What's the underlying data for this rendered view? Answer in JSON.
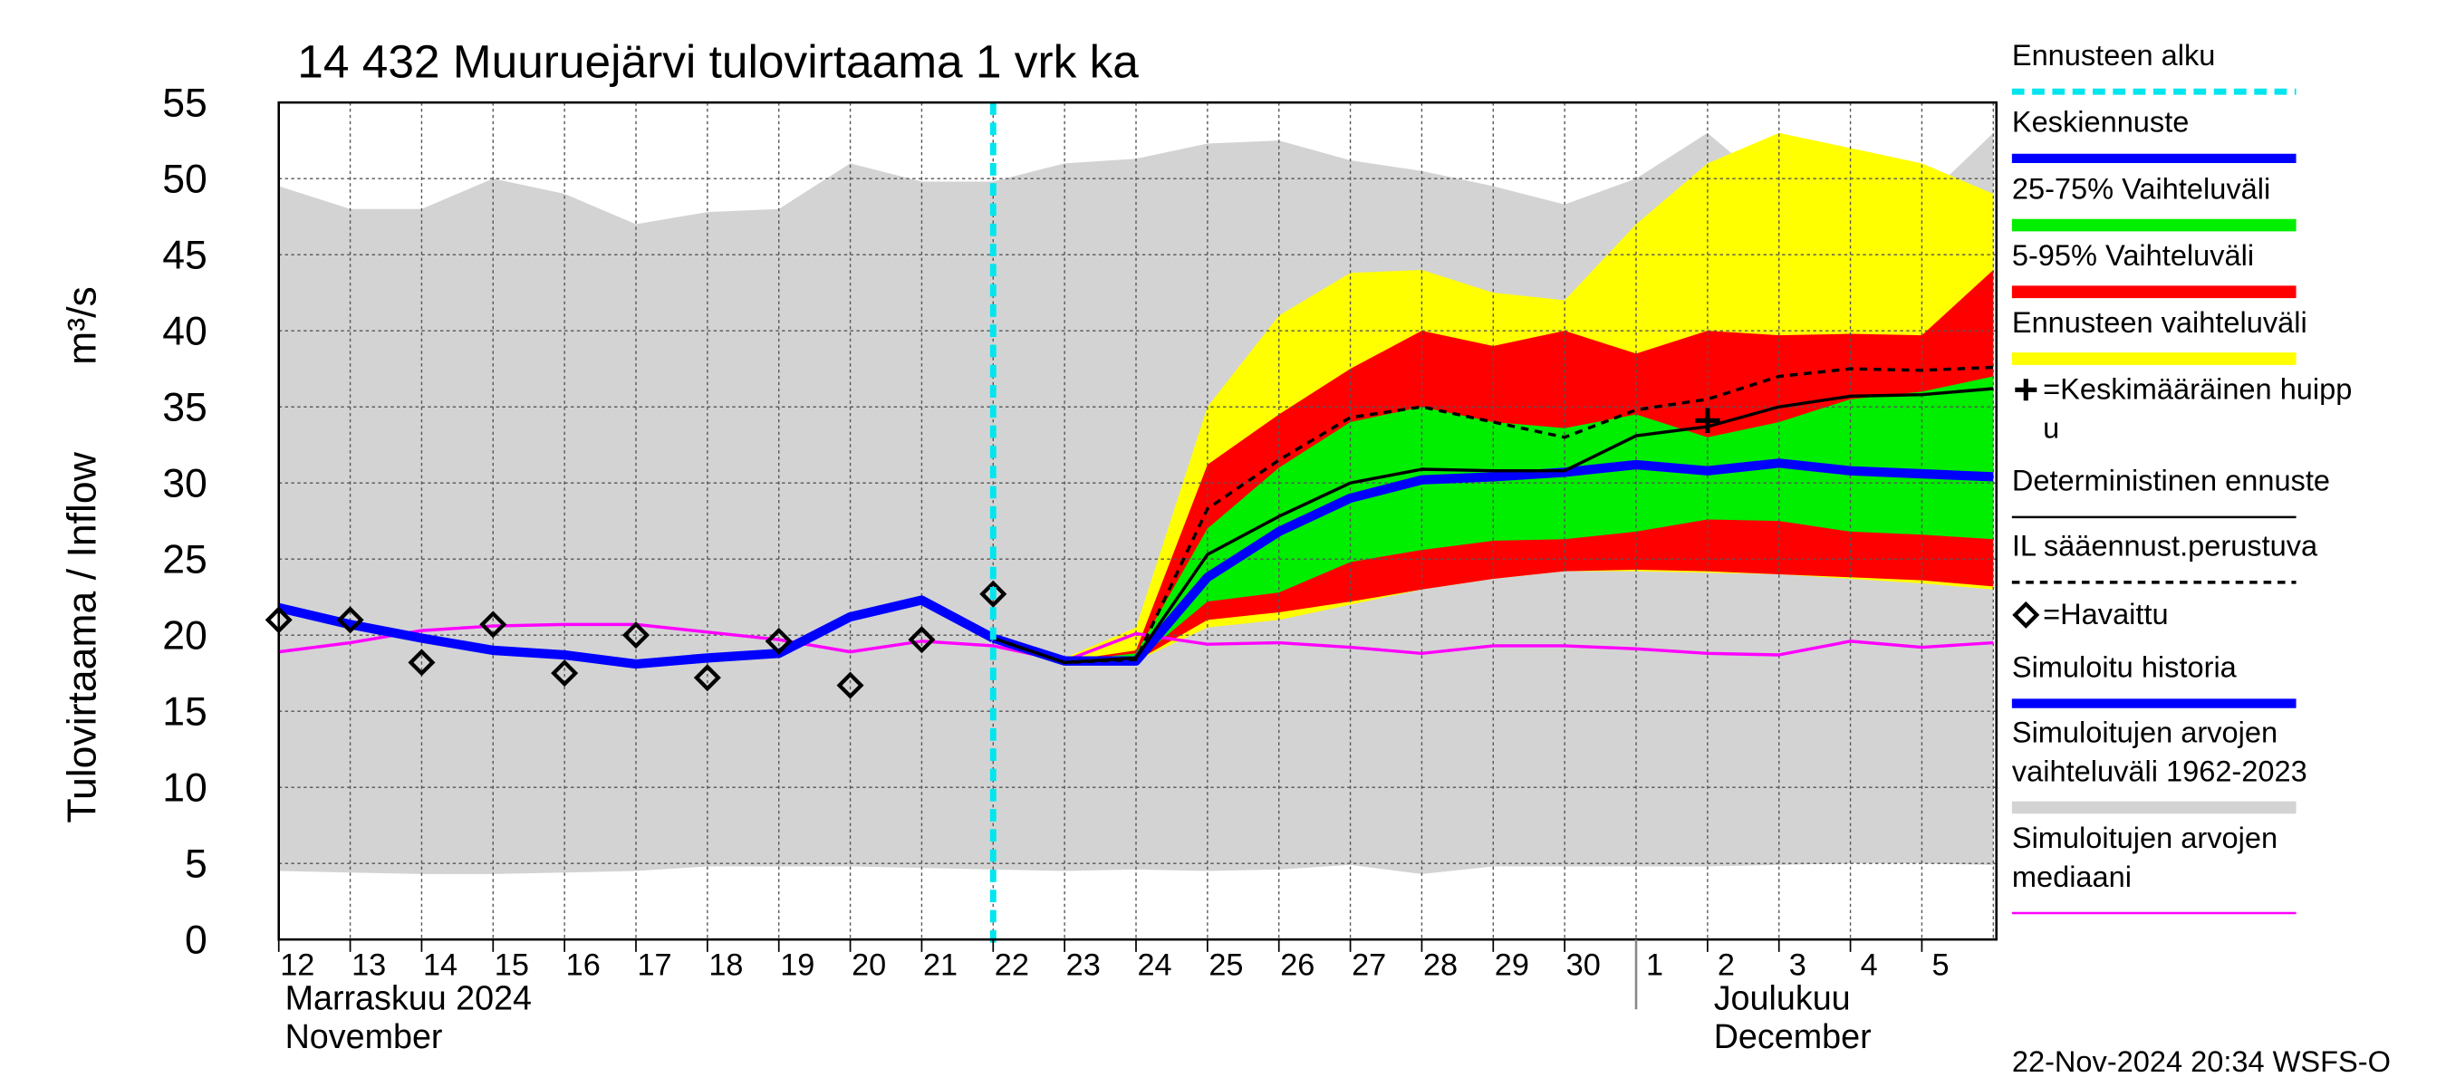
{
  "chart_data": {
    "type": "band-line",
    "title": "14 432 Muuruejärvi tulovirtaama 1 vrk ka",
    "ylabel": "Tulovirtaama / Inflow",
    "yunit": "m³/s",
    "footer": "22-Nov-2024 20:34 WSFS-O",
    "categories": [
      "12",
      "13",
      "14",
      "15",
      "16",
      "17",
      "18",
      "19",
      "20",
      "21",
      "22",
      "23",
      "24",
      "25",
      "26",
      "27",
      "28",
      "29",
      "30",
      "1",
      "2",
      "3",
      "4",
      "5",
      null
    ],
    "months": [
      [
        "Marraskuu 2024",
        "November"
      ],
      [
        "Joulukuu",
        "December"
      ]
    ],
    "ylim": [
      0,
      55
    ],
    "yticks": [
      0,
      5,
      10,
      15,
      20,
      25,
      30,
      35,
      40,
      45,
      50,
      55
    ],
    "grid": true,
    "forecast_start": {
      "name": [
        "Ennusteen alku"
      ],
      "color": "#00e5ee",
      "x": "22"
    },
    "bands": [
      {
        "name": [
          "Simuloitujen arvojen",
          "vaihteluväli 1962-2023"
        ],
        "color": "#d3d3d3",
        "upper": [
          49.5,
          48,
          48,
          50,
          49,
          47,
          47.8,
          48,
          51,
          49.8,
          49.8,
          51,
          51.3,
          52.3,
          52.5,
          51.2,
          50.5,
          49.5,
          48.3,
          50,
          53,
          49,
          49,
          48.5,
          53
        ],
        "lower": [
          4.5,
          4.4,
          4.3,
          4.3,
          4.4,
          4.5,
          4.8,
          4.8,
          4.8,
          4.7,
          4.6,
          4.5,
          4.6,
          4.5,
          4.6,
          4.9,
          4.3,
          4.8,
          4.8,
          4.8,
          4.8,
          4.9,
          5.0,
          5.0,
          4.9
        ]
      },
      {
        "name": [
          "Ennusteen vaihteluväli"
        ],
        "color": "#ffff00",
        "upper": [
          null,
          null,
          null,
          null,
          null,
          null,
          null,
          null,
          null,
          null,
          null,
          18.5,
          20.5,
          35,
          41,
          43.8,
          44,
          42.5,
          42,
          47,
          51,
          53,
          52,
          51,
          49
        ],
        "lower": [
          null,
          null,
          null,
          null,
          null,
          null,
          null,
          null,
          null,
          null,
          null,
          18.2,
          18.3,
          20.5,
          21,
          22,
          23,
          23.7,
          24.2,
          24.2,
          24.1,
          24,
          23.7,
          23.4,
          23
        ]
      },
      {
        "name": [
          "5-95% Vaihteluväli"
        ],
        "color": "#ff0000",
        "upper": [
          null,
          null,
          null,
          null,
          null,
          null,
          null,
          null,
          null,
          null,
          null,
          18.3,
          19,
          31.2,
          34.5,
          37.5,
          40,
          39,
          40,
          38.5,
          40,
          39.7,
          39.8,
          39.7,
          44
        ],
        "lower": [
          null,
          null,
          null,
          null,
          null,
          null,
          null,
          null,
          null,
          null,
          null,
          18.2,
          18.3,
          21,
          21.5,
          22.2,
          23,
          23.7,
          24.2,
          24.3,
          24.2,
          24,
          23.8,
          23.6,
          23.2
        ]
      },
      {
        "name": [
          "25-75% Vaihteluväli"
        ],
        "color": "#00ee00",
        "upper": [
          null,
          null,
          null,
          null,
          null,
          null,
          null,
          null,
          null,
          null,
          null,
          18.3,
          18.8,
          27,
          31,
          34,
          35,
          34,
          33.6,
          34.5,
          33,
          34,
          35.5,
          36,
          37
        ],
        "lower": [
          null,
          null,
          null,
          null,
          null,
          null,
          null,
          null,
          null,
          null,
          null,
          18.2,
          18.3,
          22.2,
          22.8,
          24.8,
          25.6,
          26.2,
          26.3,
          26.8,
          27.6,
          27.5,
          26.8,
          26.6,
          26.3
        ]
      }
    ],
    "lines": [
      {
        "name": [
          "Simuloitujen arvojen",
          "mediaani"
        ],
        "color": "#ff00ff",
        "style": "thin",
        "values": [
          18.9,
          19.5,
          20.3,
          20.6,
          20.7,
          20.7,
          20.2,
          19.7,
          18.9,
          19.6,
          19.3,
          18.3,
          20.1,
          19.4,
          19.5,
          19.2,
          18.8,
          19.3,
          19.3,
          19.1,
          18.8,
          18.7,
          19.6,
          19.2,
          19.5
        ]
      },
      {
        "name": [
          "Simuloitu historia"
        ],
        "color": "#0000ff",
        "style": "thick",
        "values": [
          21.8,
          20.7,
          19.8,
          19,
          18.7,
          18.1,
          18.5,
          18.8,
          21.2,
          22.3,
          19.8,
          null,
          null,
          null,
          null,
          null,
          null,
          null,
          null,
          null,
          null,
          null,
          null,
          null,
          null
        ]
      },
      {
        "name": [
          "Keskiennuste"
        ],
        "color": "#0000ff",
        "style": "thick",
        "values": [
          null,
          null,
          null,
          null,
          null,
          null,
          null,
          null,
          null,
          null,
          19.8,
          18.3,
          18.3,
          23.8,
          26.8,
          29,
          30.2,
          30.4,
          30.7,
          31.2,
          30.8,
          31.3,
          30.8,
          30.6,
          30.4
        ]
      },
      {
        "name": [
          "Deterministinen ennuste"
        ],
        "color": "#000000",
        "style": "thin",
        "values": [
          null,
          null,
          null,
          null,
          null,
          null,
          null,
          null,
          null,
          null,
          19.8,
          18.2,
          18.5,
          25.3,
          27.8,
          30,
          30.9,
          30.8,
          30.8,
          33.1,
          33.7,
          35,
          35.7,
          35.8,
          36.2
        ]
      },
      {
        "name": [
          "IL sääennust.perustuva"
        ],
        "color": "#000000",
        "style": "dashed",
        "values": [
          null,
          null,
          null,
          null,
          null,
          null,
          null,
          null,
          null,
          null,
          19.8,
          18.2,
          18.4,
          28.3,
          31.5,
          34.3,
          35,
          34,
          33,
          34.8,
          35.5,
          37,
          37.5,
          37.4,
          37.6
        ]
      }
    ],
    "observed": {
      "name": [
        "=Havaittu"
      ],
      "color": "#000000",
      "values": [
        21,
        21,
        18.2,
        20.7,
        17.5,
        20,
        17.2,
        19.6,
        16.7,
        19.7,
        22.7,
        null,
        null,
        null,
        null,
        null,
        null,
        null,
        null,
        null,
        null,
        null,
        null,
        null,
        null
      ]
    },
    "peak": {
      "name": [
        "=Keskimääräinen huipp",
        "u"
      ],
      "color": "#000000",
      "values": [
        null,
        null,
        null,
        null,
        null,
        null,
        null,
        null,
        null,
        null,
        null,
        null,
        null,
        null,
        null,
        null,
        null,
        null,
        null,
        null,
        34.1,
        null,
        null,
        null,
        null
      ]
    }
  }
}
